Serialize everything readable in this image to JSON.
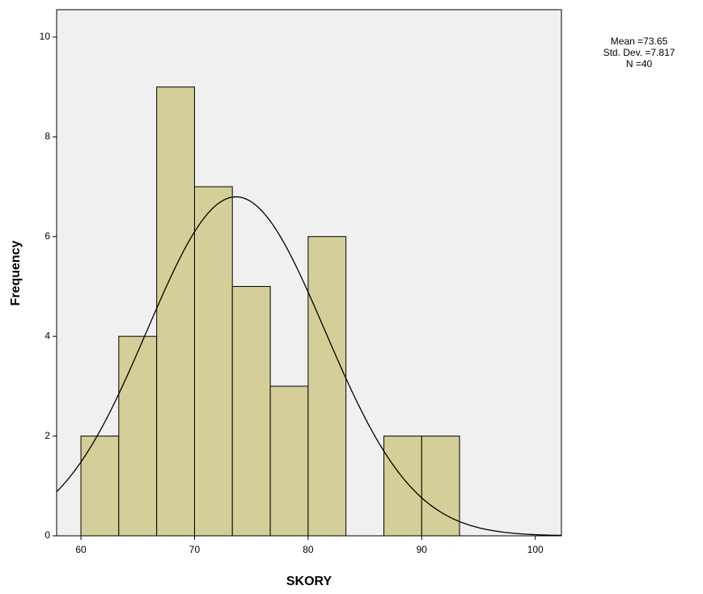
{
  "chart_data": {
    "type": "histogram",
    "xlabel": "SKORY",
    "ylabel": "Frequency",
    "bins": [
      60,
      63.33,
      66.67,
      70,
      73.33,
      76.67,
      80,
      83.33,
      86.67,
      90,
      93.33
    ],
    "counts": [
      2,
      4,
      9,
      7,
      5,
      3,
      6,
      0,
      2,
      2
    ],
    "color": "#d4cf98",
    "xlim": [
      57.86,
      102.3
    ],
    "xticks": [
      60,
      70,
      80,
      90,
      100
    ],
    "ylim": [
      0,
      10.55
    ],
    "yticks": [
      0,
      2,
      4,
      6,
      8,
      10
    ],
    "stats": [
      {
        "value": 73.65,
        "label": "Mean =73.65"
      },
      {
        "value": 7.817,
        "label": "Std. Dev. =7.817"
      },
      {
        "value": 40,
        "label": "N =40"
      }
    ],
    "normal_curve": true
  }
}
